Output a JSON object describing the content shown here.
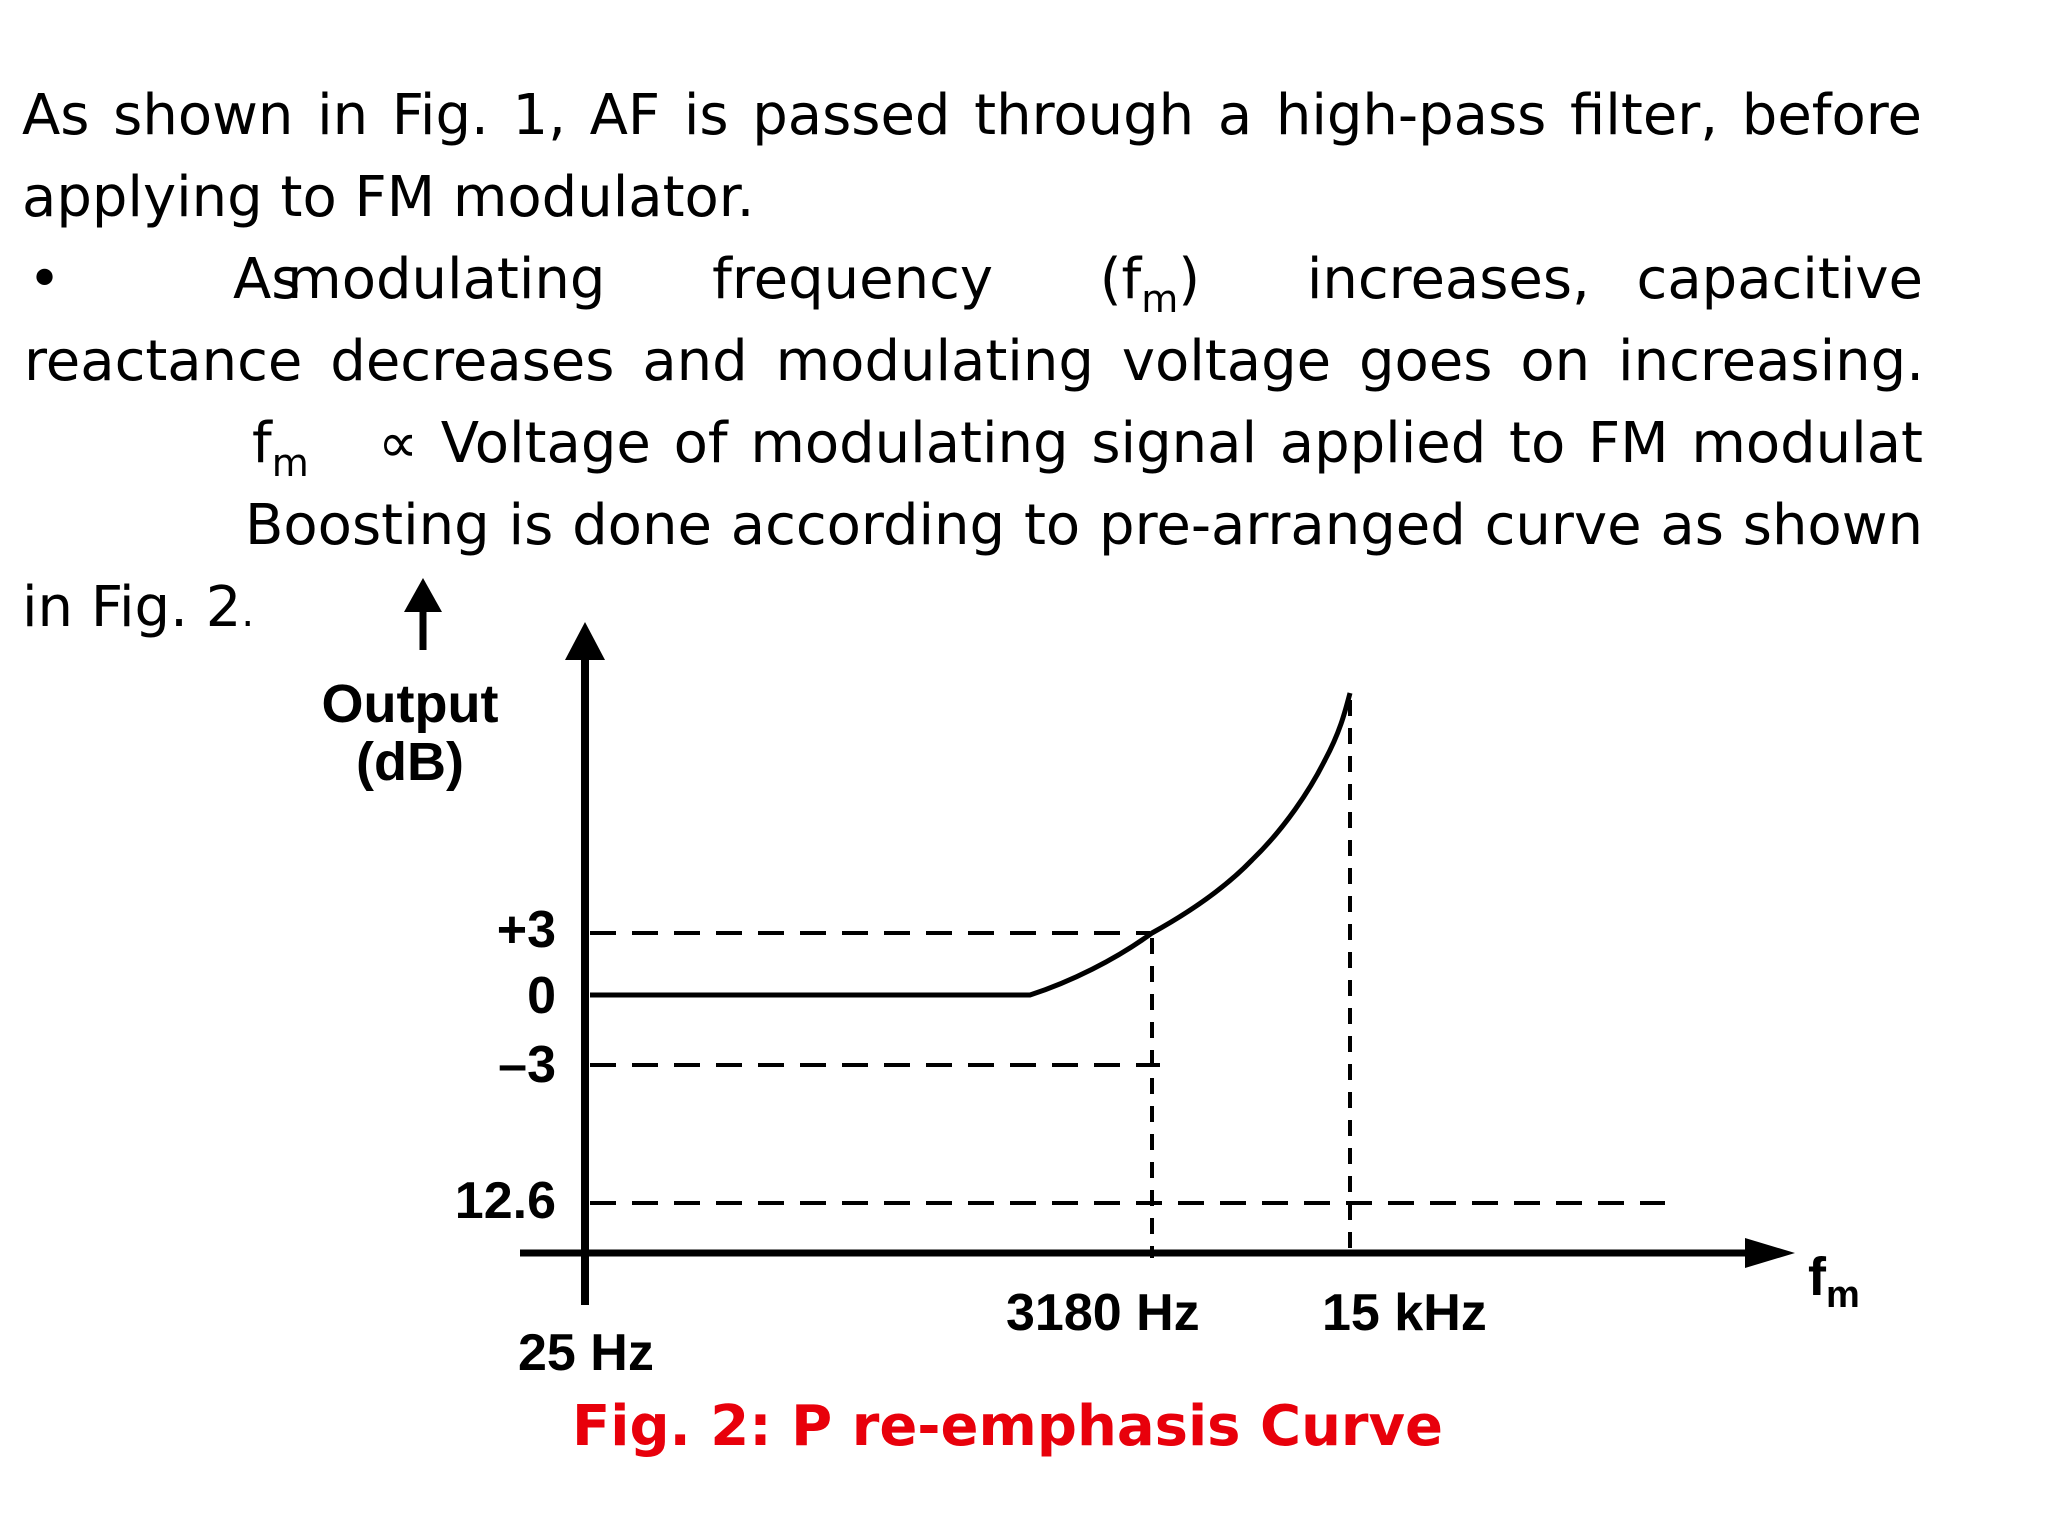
{
  "text": {
    "line1": "As shown in Fig. 1, AF is passed through a high-pass filter, before",
    "line2": "applying to FM modulator.",
    "bullet": "•",
    "line3_a": "As",
    "line3_b": "modulating",
    "line3_c": "frequency",
    "line3_d_open": "(f",
    "line3_d_sub": "m",
    "line3_d_close": ")",
    "line3_e": "increases,",
    "line3_f": "capacitive",
    "line4": "reactance decreases and modulating voltage goes on increasing.",
    "line5_f": "f",
    "line5_sub": "m",
    "line5_rest": "∝ Voltage of modulating signal  applied  to  FM modulat",
    "line6": "Boosting is done according to pre-arranged curve as shown",
    "line7": "in Fig. 2",
    "line7_dot": "."
  },
  "chart_data": {
    "type": "line",
    "caption": "Fig. 2: P re-emphasis Curve",
    "ylabel": [
      "Output",
      "(dB)"
    ],
    "xlabel_main": "f",
    "xlabel_sub": "m",
    "yticks": [
      "+3",
      "0",
      "–3",
      "12.6"
    ],
    "xticks": [
      "25 Hz",
      "3180 Hz",
      "15 kHz"
    ],
    "x": [
      "25 Hz",
      "3180 Hz",
      "15 kHz"
    ],
    "series": [
      {
        "values": [
          0,
          3,
          17
        ]
      }
    ],
    "reference_lines": [
      "+3 dB at 3180 Hz",
      "–3 dB to 3180 Hz",
      "12.6 across full range",
      "vertical at 3180 Hz",
      "vertical at 15 kHz"
    ],
    "grid": false
  }
}
